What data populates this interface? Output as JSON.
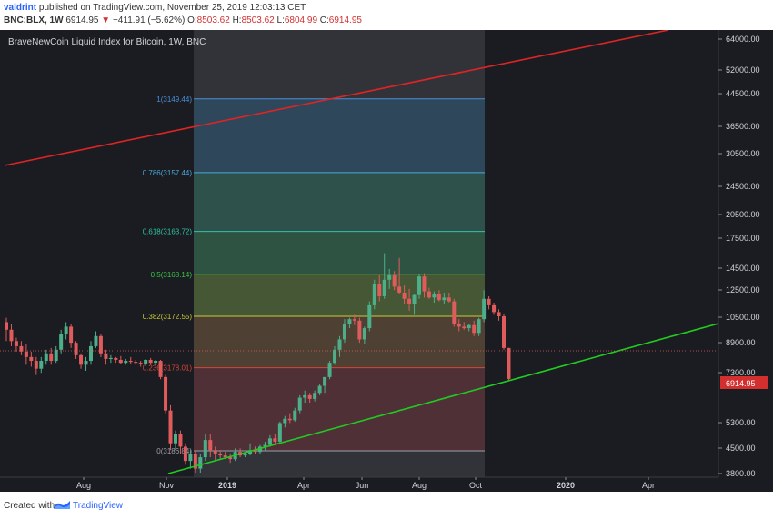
{
  "header": {
    "user": "valdrint",
    "published_text": "published on TradingView.com, November 25, 2019 12:03:13 CET",
    "symbol": "BNC:BLX, 1W",
    "last": "6914.95",
    "change": "−411.91 (−5.62%)",
    "ohlc_label_o": "O:",
    "ohlc_o": "8503.62",
    "ohlc_label_h": "H:",
    "ohlc_h": "8503.62",
    "ohlc_label_l": "L:",
    "ohlc_l": "6804.99",
    "ohlc_label_c": "C:",
    "ohlc_c": "6914.95"
  },
  "footer": {
    "created_with": "Created with",
    "brand": "TradingView"
  },
  "colors": {
    "background": "#1b1c21",
    "up": "#4caf8a",
    "down": "#e05b5b",
    "red_trendline": "#e02424",
    "green_trendline": "#22c922",
    "price_label_bg": "#d32f2f"
  },
  "chart_data": {
    "type": "candlestick",
    "title": "BraveNewCoin Liquid Index for Bitcoin, 1W, BNC",
    "y_scale": "log",
    "ylim": [
      3700,
      68000
    ],
    "y_ticks": [
      "64000.00",
      "52000.00",
      "44500.00",
      "36500.00",
      "30500.00",
      "24500.00",
      "20500.00",
      "17500.00",
      "14500.00",
      "12500.00",
      "10500.00",
      "8900.00",
      "7300.00",
      "5300.00",
      "4500.00",
      "3800.00"
    ],
    "last_price_label": "6914.95",
    "x_ticks": [
      "Aug",
      "Nov",
      "2019",
      "Apr",
      "Jun",
      "Aug",
      "Oct",
      "2020",
      "Apr"
    ],
    "fib_levels": [
      {
        "label": "1(3149.44)",
        "price": 44800
      },
      {
        "label": "0.786(3157.44)",
        "price": 27400
      },
      {
        "label": "0.618(3163.72)",
        "price": 18500
      },
      {
        "label": "0.5(3168.14)",
        "price": 13900
      },
      {
        "label": "0.382(3172.55)",
        "price": 10500
      },
      {
        "label": "0.236(3178.01)",
        "price": 7450
      },
      {
        "label": "0(3186.84)",
        "price": 4280
      }
    ],
    "series": [
      {
        "o": 10100,
        "h": 10400,
        "l": 8900,
        "c": 9600
      },
      {
        "o": 9600,
        "h": 10000,
        "l": 8600,
        "c": 8900
      },
      {
        "o": 8900,
        "h": 9100,
        "l": 8300,
        "c": 8600
      },
      {
        "o": 8600,
        "h": 8900,
        "l": 8100,
        "c": 8300
      },
      {
        "o": 8300,
        "h": 8700,
        "l": 7600,
        "c": 8000
      },
      {
        "o": 8000,
        "h": 8300,
        "l": 7500,
        "c": 7800
      },
      {
        "o": 7800,
        "h": 8000,
        "l": 7100,
        "c": 7400
      },
      {
        "o": 7400,
        "h": 8000,
        "l": 7200,
        "c": 7800
      },
      {
        "o": 7800,
        "h": 8400,
        "l": 7600,
        "c": 8200
      },
      {
        "o": 8200,
        "h": 8500,
        "l": 7600,
        "c": 7800
      },
      {
        "o": 7800,
        "h": 8600,
        "l": 7700,
        "c": 8400
      },
      {
        "o": 8400,
        "h": 9600,
        "l": 8200,
        "c": 9300
      },
      {
        "o": 9300,
        "h": 10100,
        "l": 9000,
        "c": 9800
      },
      {
        "o": 9800,
        "h": 10000,
        "l": 8500,
        "c": 8800
      },
      {
        "o": 8800,
        "h": 8900,
        "l": 7900,
        "c": 8100
      },
      {
        "o": 8100,
        "h": 8200,
        "l": 7400,
        "c": 7600
      },
      {
        "o": 7600,
        "h": 8000,
        "l": 7300,
        "c": 7800
      },
      {
        "o": 7800,
        "h": 8900,
        "l": 7600,
        "c": 8600
      },
      {
        "o": 8600,
        "h": 9500,
        "l": 8500,
        "c": 9200
      },
      {
        "o": 9200,
        "h": 9300,
        "l": 8000,
        "c": 8200
      },
      {
        "o": 8200,
        "h": 8400,
        "l": 7600,
        "c": 7900
      },
      {
        "o": 7900,
        "h": 8100,
        "l": 7700,
        "c": 7950
      },
      {
        "o": 7950,
        "h": 8000,
        "l": 7700,
        "c": 7850
      },
      {
        "o": 7850,
        "h": 8050,
        "l": 7650,
        "c": 7700
      },
      {
        "o": 7700,
        "h": 7900,
        "l": 7600,
        "c": 7800
      },
      {
        "o": 7800,
        "h": 8000,
        "l": 7650,
        "c": 7750
      },
      {
        "o": 7750,
        "h": 7850,
        "l": 7600,
        "c": 7700
      },
      {
        "o": 7700,
        "h": 7800,
        "l": 7500,
        "c": 7650
      },
      {
        "o": 7650,
        "h": 7900,
        "l": 7550,
        "c": 7850
      },
      {
        "o": 7850,
        "h": 7950,
        "l": 7600,
        "c": 7700
      },
      {
        "o": 7700,
        "h": 7850,
        "l": 7550,
        "c": 7800
      },
      {
        "o": 7800,
        "h": 7850,
        "l": 6900,
        "c": 7000
      },
      {
        "o": 7000,
        "h": 7100,
        "l": 5500,
        "c": 5600
      },
      {
        "o": 5600,
        "h": 5800,
        "l": 4300,
        "c": 4500
      },
      {
        "o": 4500,
        "h": 4900,
        "l": 4300,
        "c": 4800
      },
      {
        "o": 4800,
        "h": 4900,
        "l": 4200,
        "c": 4400
      },
      {
        "o": 4400,
        "h": 4500,
        "l": 3900,
        "c": 4000
      },
      {
        "o": 4000,
        "h": 4300,
        "l": 3800,
        "c": 4200
      },
      {
        "o": 4200,
        "h": 4300,
        "l": 3700,
        "c": 3800
      },
      {
        "o": 3800,
        "h": 4200,
        "l": 3700,
        "c": 4100
      },
      {
        "o": 4100,
        "h": 4800,
        "l": 4000,
        "c": 4600
      },
      {
        "o": 4600,
        "h": 4800,
        "l": 4100,
        "c": 4300
      },
      {
        "o": 4300,
        "h": 4400,
        "l": 4000,
        "c": 4200
      },
      {
        "o": 4200,
        "h": 4300,
        "l": 4050,
        "c": 4150
      },
      {
        "o": 4150,
        "h": 4250,
        "l": 4050,
        "c": 4100
      },
      {
        "o": 4100,
        "h": 4200,
        "l": 3950,
        "c": 4050
      },
      {
        "o": 4050,
        "h": 4350,
        "l": 4000,
        "c": 4250
      },
      {
        "o": 4250,
        "h": 4350,
        "l": 4100,
        "c": 4150
      },
      {
        "o": 4150,
        "h": 4250,
        "l": 4100,
        "c": 4200
      },
      {
        "o": 4200,
        "h": 4500,
        "l": 4150,
        "c": 4300
      },
      {
        "o": 4300,
        "h": 4400,
        "l": 4200,
        "c": 4250
      },
      {
        "o": 4250,
        "h": 4450,
        "l": 4200,
        "c": 4400
      },
      {
        "o": 4400,
        "h": 4550,
        "l": 4300,
        "c": 4450
      },
      {
        "o": 4450,
        "h": 4750,
        "l": 4400,
        "c": 4650
      },
      {
        "o": 4650,
        "h": 4800,
        "l": 4450,
        "c": 4550
      },
      {
        "o": 4550,
        "h": 5200,
        "l": 4500,
        "c": 5150
      },
      {
        "o": 5150,
        "h": 5400,
        "l": 5000,
        "c": 5300
      },
      {
        "o": 5300,
        "h": 5500,
        "l": 5150,
        "c": 5250
      },
      {
        "o": 5250,
        "h": 5700,
        "l": 5200,
        "c": 5600
      },
      {
        "o": 5600,
        "h": 6200,
        "l": 5500,
        "c": 6100
      },
      {
        "o": 6100,
        "h": 6400,
        "l": 5900,
        "c": 6200
      },
      {
        "o": 6200,
        "h": 6300,
        "l": 5900,
        "c": 6050
      },
      {
        "o": 6050,
        "h": 6400,
        "l": 5950,
        "c": 6300
      },
      {
        "o": 6300,
        "h": 6700,
        "l": 6200,
        "c": 6600
      },
      {
        "o": 6600,
        "h": 7000,
        "l": 6300,
        "c": 7000
      },
      {
        "o": 7000,
        "h": 7800,
        "l": 6900,
        "c": 7700
      },
      {
        "o": 7700,
        "h": 8600,
        "l": 7600,
        "c": 8400
      },
      {
        "o": 8400,
        "h": 9200,
        "l": 8000,
        "c": 9000
      },
      {
        "o": 9000,
        "h": 10300,
        "l": 8800,
        "c": 10000
      },
      {
        "o": 10000,
        "h": 10400,
        "l": 9700,
        "c": 10300
      },
      {
        "o": 10300,
        "h": 10600,
        "l": 9900,
        "c": 10200
      },
      {
        "o": 10200,
        "h": 10400,
        "l": 8800,
        "c": 9000
      },
      {
        "o": 9000,
        "h": 9800,
        "l": 8700,
        "c": 9700
      },
      {
        "o": 9700,
        "h": 11600,
        "l": 9500,
        "c": 11300
      },
      {
        "o": 11300,
        "h": 13400,
        "l": 11000,
        "c": 13000
      },
      {
        "o": 13000,
        "h": 13800,
        "l": 11600,
        "c": 12000
      },
      {
        "o": 12000,
        "h": 16000,
        "l": 11800,
        "c": 13400
      },
      {
        "o": 13400,
        "h": 14400,
        "l": 12600,
        "c": 13800
      },
      {
        "o": 13800,
        "h": 14200,
        "l": 12500,
        "c": 12800
      },
      {
        "o": 12800,
        "h": 15500,
        "l": 12200,
        "c": 12300
      },
      {
        "o": 12300,
        "h": 12900,
        "l": 11400,
        "c": 11800
      },
      {
        "o": 11800,
        "h": 12600,
        "l": 10900,
        "c": 11400
      },
      {
        "o": 11400,
        "h": 12200,
        "l": 10600,
        "c": 12100
      },
      {
        "o": 12100,
        "h": 13900,
        "l": 11800,
        "c": 13700
      },
      {
        "o": 13700,
        "h": 14000,
        "l": 11900,
        "c": 12400
      },
      {
        "o": 12400,
        "h": 12700,
        "l": 11800,
        "c": 11900
      },
      {
        "o": 11900,
        "h": 12400,
        "l": 11500,
        "c": 12200
      },
      {
        "o": 12200,
        "h": 12500,
        "l": 11600,
        "c": 11700
      },
      {
        "o": 11700,
        "h": 12300,
        "l": 11400,
        "c": 11900
      },
      {
        "o": 11900,
        "h": 12300,
        "l": 11500,
        "c": 11600
      },
      {
        "o": 11600,
        "h": 11800,
        "l": 9800,
        "c": 10000
      },
      {
        "o": 10000,
        "h": 10300,
        "l": 9500,
        "c": 9800
      },
      {
        "o": 9800,
        "h": 10100,
        "l": 9600,
        "c": 9700
      },
      {
        "o": 9700,
        "h": 10000,
        "l": 9500,
        "c": 9900
      },
      {
        "o": 9900,
        "h": 10200,
        "l": 9200,
        "c": 9400
      },
      {
        "o": 9400,
        "h": 10400,
        "l": 9200,
        "c": 10300
      },
      {
        "o": 10300,
        "h": 12500,
        "l": 10100,
        "c": 11800
      },
      {
        "o": 11800,
        "h": 12000,
        "l": 11000,
        "c": 11300
      },
      {
        "o": 11300,
        "h": 11500,
        "l": 10600,
        "c": 10800
      },
      {
        "o": 10800,
        "h": 11000,
        "l": 10200,
        "c": 10500
      },
      {
        "o": 10500,
        "h": 10700,
        "l": 8400,
        "c": 8500
      },
      {
        "o": 8500,
        "h": 8503,
        "l": 6805,
        "c": 6915
      }
    ]
  }
}
